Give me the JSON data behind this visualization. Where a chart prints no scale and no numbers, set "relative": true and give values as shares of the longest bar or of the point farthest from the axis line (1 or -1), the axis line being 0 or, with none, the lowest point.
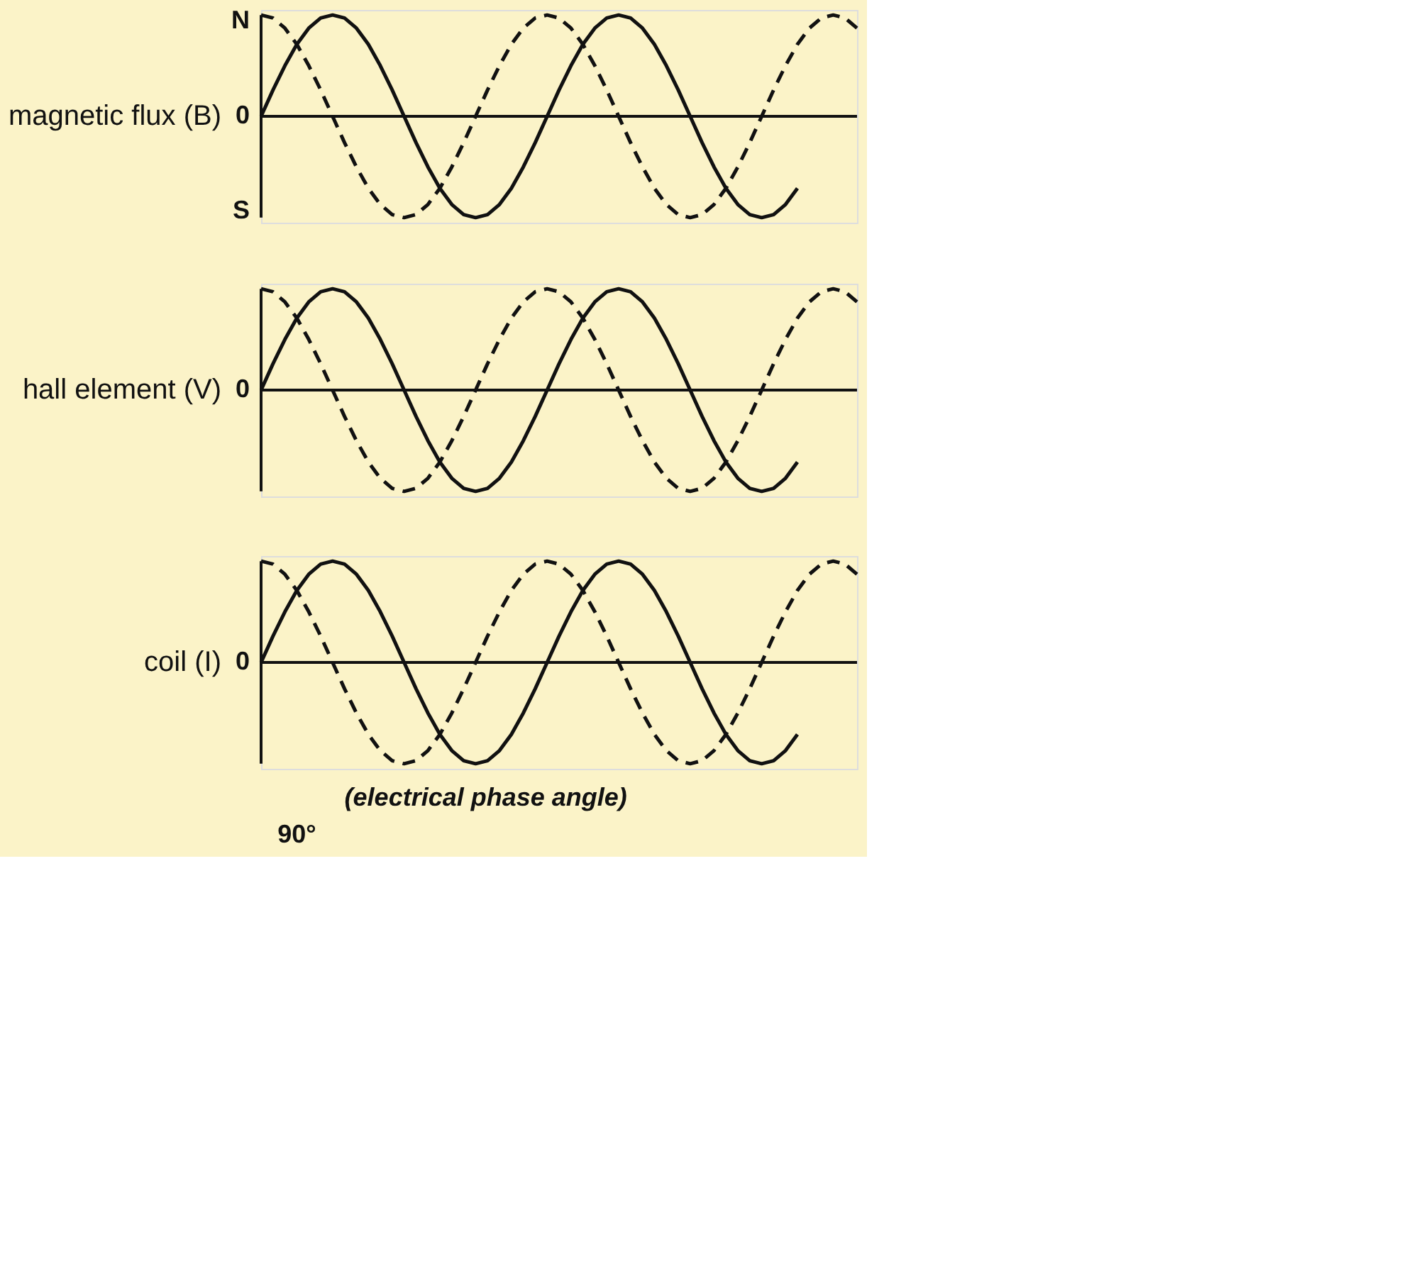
{
  "chart_data": [
    {
      "type": "line",
      "relative": true,
      "ylabel": "magnetic flux (B)",
      "categories": [
        null,
        null,
        null,
        null,
        null,
        null,
        null,
        null,
        null,
        null,
        null,
        null,
        null,
        null,
        null,
        null,
        null,
        null,
        null,
        null,
        null,
        null,
        null,
        null,
        null,
        null,
        null,
        null,
        null,
        null,
        null,
        null,
        null,
        null,
        null,
        null,
        null,
        null,
        null,
        null,
        null,
        null,
        null,
        null,
        null,
        null,
        null,
        null,
        null,
        null,
        null
      ],
      "annotations": [
        "N",
        "0",
        "S"
      ],
      "series": [
        {
          "color": "#111111",
          "line_style": "solid",
          "values": [
            0,
            0.26,
            0.5,
            0.71,
            0.87,
            0.97,
            1,
            0.97,
            0.87,
            0.71,
            0.5,
            0.26,
            0,
            -0.26,
            -0.5,
            -0.71,
            -0.87,
            -0.97,
            -1,
            -0.97,
            -0.87,
            -0.71,
            -0.5,
            -0.26,
            0,
            0.26,
            0.5,
            0.71,
            0.87,
            0.97,
            1,
            0.97,
            0.87,
            0.71,
            0.5,
            0.26,
            0,
            -0.26,
            -0.5,
            -0.71,
            -0.87,
            -0.97,
            -1,
            -0.97,
            -0.87,
            -0.71,
            null,
            null,
            null,
            null,
            null
          ]
        },
        {
          "color": "#111111",
          "line_style": "dashed",
          "values": [
            1,
            0.97,
            0.87,
            0.71,
            0.5,
            0.26,
            0,
            -0.26,
            -0.5,
            -0.71,
            -0.87,
            -0.97,
            -1,
            -0.97,
            -0.87,
            -0.71,
            -0.5,
            -0.26,
            0,
            0.26,
            0.5,
            0.71,
            0.87,
            0.97,
            1,
            0.97,
            0.87,
            0.71,
            0.5,
            0.26,
            0,
            -0.26,
            -0.5,
            -0.71,
            -0.87,
            -0.97,
            -1,
            -0.97,
            -0.87,
            -0.71,
            -0.5,
            -0.26,
            0,
            0.26,
            0.5,
            0.71,
            0.87,
            0.97,
            1,
            0.97,
            0.87
          ]
        }
      ]
    },
    {
      "type": "line",
      "relative": true,
      "ylabel": "hall element (V)",
      "categories": [
        null,
        null,
        null,
        null,
        null,
        null,
        null,
        null,
        null,
        null,
        null,
        null,
        null,
        null,
        null,
        null,
        null,
        null,
        null,
        null,
        null,
        null,
        null,
        null,
        null,
        null,
        null,
        null,
        null,
        null,
        null,
        null,
        null,
        null,
        null,
        null,
        null,
        null,
        null,
        null,
        null,
        null,
        null,
        null,
        null,
        null,
        null,
        null,
        null,
        null,
        null
      ],
      "annotations": [
        "0"
      ],
      "series": [
        {
          "color": "#111111",
          "line_style": "solid",
          "values": [
            0,
            0.26,
            0.5,
            0.71,
            0.87,
            0.97,
            1,
            0.97,
            0.87,
            0.71,
            0.5,
            0.26,
            0,
            -0.26,
            -0.5,
            -0.71,
            -0.87,
            -0.97,
            -1,
            -0.97,
            -0.87,
            -0.71,
            -0.5,
            -0.26,
            0,
            0.26,
            0.5,
            0.71,
            0.87,
            0.97,
            1,
            0.97,
            0.87,
            0.71,
            0.5,
            0.26,
            0,
            -0.26,
            -0.5,
            -0.71,
            -0.87,
            -0.97,
            -1,
            -0.97,
            -0.87,
            -0.71,
            null,
            null,
            null,
            null,
            null
          ]
        },
        {
          "color": "#111111",
          "line_style": "dashed",
          "values": [
            1,
            0.97,
            0.87,
            0.71,
            0.5,
            0.26,
            0,
            -0.26,
            -0.5,
            -0.71,
            -0.87,
            -0.97,
            -1,
            -0.97,
            -0.87,
            -0.71,
            -0.5,
            -0.26,
            0,
            0.26,
            0.5,
            0.71,
            0.87,
            0.97,
            1,
            0.97,
            0.87,
            0.71,
            0.5,
            0.26,
            0,
            -0.26,
            -0.5,
            -0.71,
            -0.87,
            -0.97,
            -1,
            -0.97,
            -0.87,
            -0.71,
            -0.5,
            -0.26,
            0,
            0.26,
            0.5,
            0.71,
            0.87,
            0.97,
            1,
            0.97,
            0.87
          ]
        }
      ]
    },
    {
      "type": "line",
      "relative": true,
      "ylabel": "coil (I)",
      "categories": [
        null,
        null,
        null,
        null,
        null,
        null,
        null,
        null,
        null,
        null,
        null,
        null,
        null,
        null,
        null,
        null,
        null,
        null,
        null,
        null,
        null,
        null,
        null,
        null,
        null,
        null,
        null,
        null,
        null,
        null,
        null,
        null,
        null,
        null,
        null,
        null,
        null,
        null,
        null,
        null,
        null,
        null,
        null,
        null,
        null,
        null,
        null,
        null,
        null,
        null,
        null
      ],
      "annotations": [
        "0",
        "90°",
        "(electrical phase angle)"
      ],
      "series": [
        {
          "color": "#111111",
          "line_style": "solid",
          "values": [
            0,
            0.26,
            0.5,
            0.71,
            0.87,
            0.97,
            1,
            0.97,
            0.87,
            0.71,
            0.5,
            0.26,
            0,
            -0.26,
            -0.5,
            -0.71,
            -0.87,
            -0.97,
            -1,
            -0.97,
            -0.87,
            -0.71,
            -0.5,
            -0.26,
            0,
            0.26,
            0.5,
            0.71,
            0.87,
            0.97,
            1,
            0.97,
            0.87,
            0.71,
            0.5,
            0.26,
            0,
            -0.26,
            -0.5,
            -0.71,
            -0.87,
            -0.97,
            -1,
            -0.97,
            -0.87,
            -0.71,
            null,
            null,
            null,
            null,
            null
          ]
        },
        {
          "color": "#111111",
          "line_style": "dashed",
          "values": [
            1,
            0.97,
            0.87,
            0.71,
            0.5,
            0.26,
            0,
            -0.26,
            -0.5,
            -0.71,
            -0.87,
            -0.97,
            -1,
            -0.97,
            -0.87,
            -0.71,
            -0.5,
            -0.26,
            0,
            0.26,
            0.5,
            0.71,
            0.87,
            0.97,
            1,
            0.97,
            0.87,
            0.71,
            0.5,
            0.26,
            0,
            -0.26,
            -0.5,
            -0.71,
            -0.87,
            -0.97,
            -1,
            -0.97,
            -0.87,
            -0.71,
            -0.5,
            -0.26,
            0,
            0.26,
            0.5,
            0.71,
            0.87,
            0.97,
            1,
            0.97,
            0.87
          ]
        }
      ]
    }
  ]
}
